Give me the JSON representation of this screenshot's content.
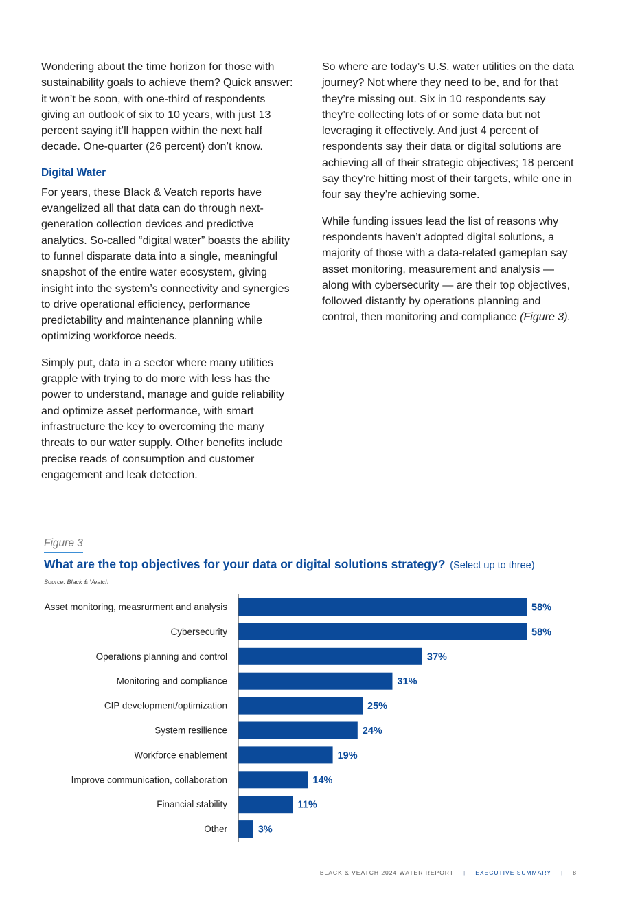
{
  "left_column": {
    "p1": "Wondering about the time horizon for those with sustainability goals to achieve them? Quick answer: it won’t be soon, with one-third of respondents giving an outlook of six to 10 years, with just 13 percent saying it’ll happen within the next half decade. One-quarter (26 percent) don’t know.",
    "heading": "Digital Water",
    "p2": "For years, these Black & Veatch reports have evangelized all that data can do through next-generation collection devices and predictive analytics. So-called “digital water” boasts the ability to funnel disparate data into a single, meaningful snapshot of the entire water ecosystem, giving insight into the system’s connectivity and synergies to drive operational efficiency, performance predictability and maintenance planning while optimizing workforce needs.",
    "p3": "Simply put, data in a sector where many utilities grapple with trying to do more with less has the power to understand, manage and guide reliability and optimize asset performance, with smart infrastructure the key to overcoming the many threats to our water supply. Other benefits include precise reads of consumption and customer engagement and leak detection."
  },
  "right_column": {
    "p1": "So where are today’s U.S. water utilities on the data journey? Not where they need to be, and for that they’re missing out. Six in 10 respondents say they’re collecting lots of or some data but not leveraging it effectively. And just 4 percent of respondents say their data or digital solutions are achieving all of their strategic objectives; 18 percent say they’re hitting most of their targets, while one in four say they’re achieving some.",
    "p2_main": "While funding issues lead the list of reasons why respondents haven’t adopted digital solutions, a majority of those with a data-related gameplan say asset monitoring, measurement and analysis — along with cybersecurity — are their top objectives, followed distantly by operations planning and control, then monitoring and compliance ",
    "p2_ref": "(Figure 3)."
  },
  "figure": {
    "label": "Figure 3",
    "title": "What are the top objectives for your data or digital solutions strategy?",
    "title_note": "(Select up to three)",
    "source": "Source: Black & Veatch"
  },
  "chart_data": {
    "type": "bar",
    "orientation": "horizontal",
    "categories": [
      "Asset monitoring, measrurment and analysis",
      "Cybersecurity",
      "Operations planning and control",
      "Monitoring and compliance",
      "CIP development/optimization",
      "System resilience",
      "Workforce enablement",
      "Improve communication, collaboration",
      "Financial stability",
      "Other"
    ],
    "values": [
      58,
      58,
      37,
      31,
      25,
      24,
      19,
      14,
      11,
      3
    ],
    "value_labels": [
      "58%",
      "58%",
      "37%",
      "31%",
      "25%",
      "24%",
      "19%",
      "14%",
      "11%",
      "3%"
    ],
    "xlim": [
      0,
      58
    ],
    "grid": false,
    "legend": "none",
    "colors": {
      "bar": "#0b4a9a",
      "label": "#0b4a9a",
      "axis": "#555555"
    }
  },
  "footer": {
    "report": "BLACK & VEATCH 2024 WATER REPORT",
    "separator": "|",
    "section": "EXECUTIVE SUMMARY",
    "page": "8"
  }
}
